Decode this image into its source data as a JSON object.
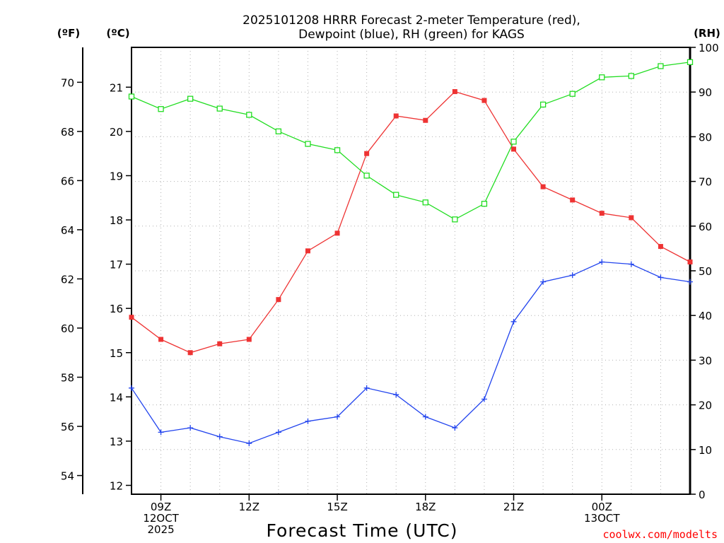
{
  "chart_data": {
    "type": "line",
    "title_lines": [
      "2025101208 HRRR Forecast 2-meter Temperature (red),",
      "Dewpoint (blue), RH (green) for KAGS"
    ],
    "xlabel": "Forecast Time (UTC)",
    "credit": "coolwx.com/modelts",
    "unit_labels": {
      "fahrenheit": "(ºF)",
      "celsius": "(ºC)",
      "rh": "(RH)"
    },
    "x_hours": [
      8,
      9,
      10,
      11,
      12,
      13,
      14,
      15,
      16,
      17,
      18,
      19,
      20,
      21,
      22,
      23,
      24,
      25,
      26,
      27
    ],
    "xlim": [
      8,
      27
    ],
    "x_ticks": [
      {
        "hour": 9,
        "lines": [
          "09Z",
          "12OCT",
          "2025"
        ]
      },
      {
        "hour": 12,
        "lines": [
          "12Z"
        ]
      },
      {
        "hour": 15,
        "lines": [
          "15Z"
        ]
      },
      {
        "hour": 18,
        "lines": [
          "18Z"
        ]
      },
      {
        "hour": 21,
        "lines": [
          "21Z"
        ]
      },
      {
        "hour": 24,
        "lines": [
          "00Z",
          "13OCT"
        ]
      }
    ],
    "celsius_axis": {
      "ylim": [
        11.8,
        21.9
      ],
      "ticks": [
        "12",
        "13",
        "14",
        "15",
        "16",
        "17",
        "18",
        "19",
        "20",
        "21"
      ]
    },
    "fahrenheit_axis": {
      "ylim": [
        53.24,
        71.42
      ],
      "ticks": [
        "54",
        "56",
        "58",
        "60",
        "62",
        "64",
        "66",
        "68",
        "70"
      ]
    },
    "rh_axis": {
      "ylim": [
        0,
        100
      ],
      "ticks": [
        "0",
        "10",
        "20",
        "30",
        "40",
        "50",
        "60",
        "70",
        "80",
        "90",
        "100"
      ]
    },
    "series": [
      {
        "name": "Temperature",
        "units": "C",
        "color": "#ee3333",
        "marker": "filled-square",
        "values": [
          15.8,
          15.3,
          15.0,
          15.2,
          15.3,
          16.2,
          17.3,
          17.7,
          19.5,
          20.35,
          20.25,
          20.9,
          20.7,
          19.6,
          18.75,
          18.45,
          18.15,
          18.05,
          17.4,
          17.05
        ]
      },
      {
        "name": "Dewpoint",
        "units": "C",
        "color": "#2244ee",
        "marker": "plus",
        "values": [
          14.2,
          13.2,
          13.3,
          13.1,
          12.95,
          13.2,
          13.45,
          13.55,
          14.2,
          14.05,
          13.55,
          13.3,
          13.95,
          15.7,
          16.6,
          16.75,
          17.05,
          17.0,
          16.7,
          16.6
        ]
      },
      {
        "name": "RH",
        "units": "%",
        "color": "#22dd22",
        "marker": "open-square",
        "values": [
          89,
          86.2,
          88.5,
          86.3,
          84.9,
          81.2,
          78.4,
          77.0,
          71.3,
          67.0,
          65.3,
          61.5,
          65.0,
          78.9,
          87.2,
          89.6,
          93.3,
          93.6,
          95.8,
          96.7
        ]
      }
    ],
    "grid": true
  }
}
